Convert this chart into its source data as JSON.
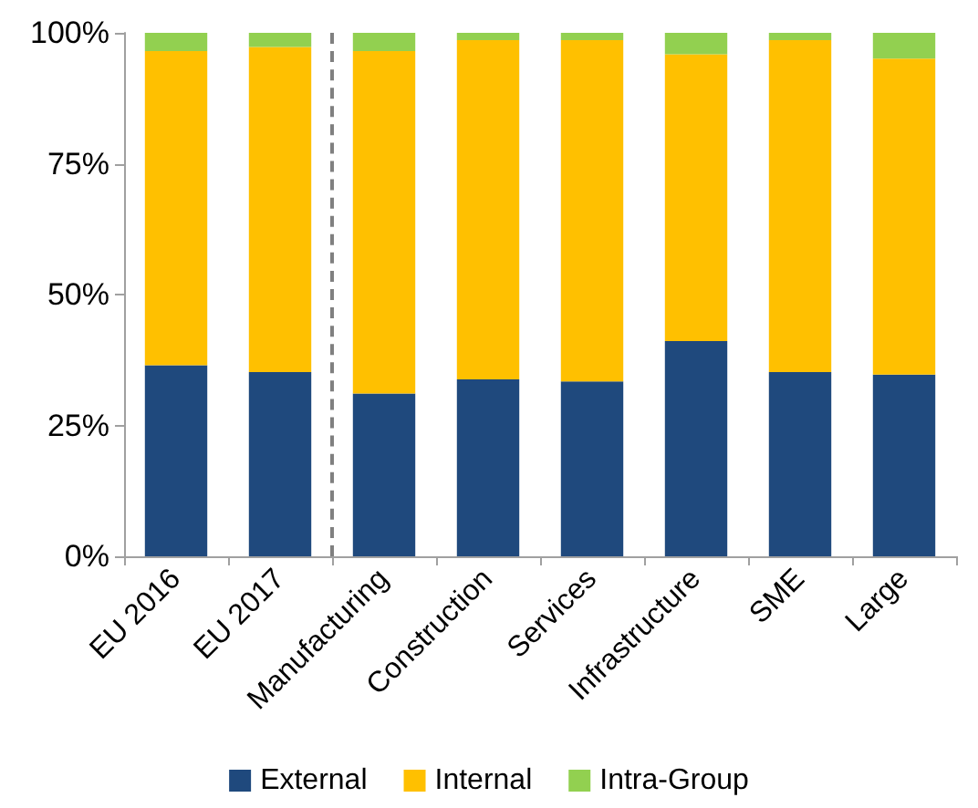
{
  "chart_data": {
    "type": "bar",
    "stacked": true,
    "categories": [
      "EU 2016",
      "EU 2017",
      "Manufacturing",
      "Construction",
      "Services",
      "Infrastructure",
      "SME",
      "Large"
    ],
    "series": [
      {
        "name": "External",
        "color": "#1f497d",
        "values": [
          36.5,
          35.2,
          31.1,
          33.8,
          33.4,
          41.1,
          35.2,
          34.7
        ]
      },
      {
        "name": "Internal",
        "color": "#ffc000",
        "values": [
          60.0,
          62.1,
          65.4,
          64.8,
          65.2,
          54.8,
          63.4,
          60.4
        ]
      },
      {
        "name": "Intra-Group",
        "color": "#92d050",
        "values": [
          3.5,
          2.7,
          3.5,
          1.4,
          1.4,
          4.1,
          1.4,
          4.9
        ]
      }
    ],
    "ylim": [
      0,
      100
    ],
    "yticks": [
      {
        "value": 0,
        "label": "0%"
      },
      {
        "value": 25,
        "label": "25%"
      },
      {
        "value": 50,
        "label": "50%"
      },
      {
        "value": 75,
        "label": "75%"
      },
      {
        "value": 100,
        "label": "100%"
      }
    ],
    "grid": false,
    "legend": "bottom"
  }
}
